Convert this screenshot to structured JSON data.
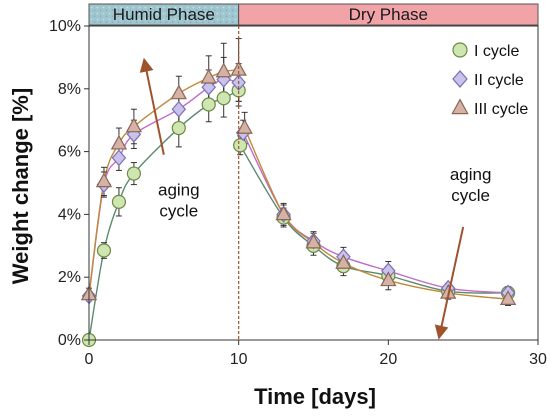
{
  "chart_data": {
    "type": "scatter",
    "xlabel": "Time [days]",
    "ylabel": "Weight change [%]",
    "xlim": [
      0,
      30
    ],
    "ylim": [
      0,
      10
    ],
    "xticks": [
      0,
      10,
      20,
      30
    ],
    "yticks": [
      0,
      2,
      4,
      6,
      8,
      10
    ],
    "ytick_suffix": "%",
    "grid": false,
    "legend_position": "top-right",
    "phases": [
      {
        "label": "Humid Phase",
        "from": 0,
        "to": 10,
        "color": "#9fc6cf"
      },
      {
        "label": "Dry Phase",
        "from": 10,
        "to": 30,
        "color": "#f2a3a8"
      }
    ],
    "phase_boundary": 10,
    "series": [
      {
        "name": "I cycle",
        "marker": "circle",
        "fill": "#cfe6b0",
        "stroke": "#6a8a45",
        "line": "#5b8a6e",
        "points": [
          {
            "x": 0,
            "y": 0.0,
            "err": 0.0
          },
          {
            "x": 1,
            "y": 2.85,
            "err": 0.25
          },
          {
            "x": 2,
            "y": 4.4,
            "err": 0.45
          },
          {
            "x": 3,
            "y": 5.3,
            "err": 0.35
          },
          {
            "x": 6,
            "y": 6.75,
            "err": 0.6
          },
          {
            "x": 8,
            "y": 7.5,
            "err": 0.55
          },
          {
            "x": 9,
            "y": 7.7,
            "err": 0.6
          },
          {
            "x": 10,
            "y": 7.95,
            "err": 0.5
          },
          {
            "x": 10.1,
            "y": 6.2,
            "err": 0.3
          },
          {
            "x": 13,
            "y": 3.9,
            "err": 0.3
          },
          {
            "x": 15,
            "y": 3.0,
            "err": 0.3
          },
          {
            "x": 17,
            "y": 2.35,
            "err": 0.3
          },
          {
            "x": 20,
            "y": 2.05,
            "err": 0.3
          },
          {
            "x": 24,
            "y": 1.55,
            "err": 0.2
          },
          {
            "x": 28,
            "y": 1.5,
            "err": 0.2
          }
        ]
      },
      {
        "name": "II cycle",
        "marker": "diamond",
        "fill": "#c9c2ea",
        "stroke": "#7a70b5",
        "line": "#c06cc8",
        "points": [
          {
            "x": 0,
            "y": 1.4,
            "err": 0.1
          },
          {
            "x": 1,
            "y": 4.95,
            "err": 0.4
          },
          {
            "x": 2,
            "y": 5.8,
            "err": 0.4
          },
          {
            "x": 3,
            "y": 6.55,
            "err": 0.45
          },
          {
            "x": 6,
            "y": 7.35,
            "err": 0.5
          },
          {
            "x": 8,
            "y": 8.05,
            "err": 0.55
          },
          {
            "x": 9,
            "y": 8.3,
            "err": 0.7
          },
          {
            "x": 10,
            "y": 8.2,
            "err": 0.6
          },
          {
            "x": 10.3,
            "y": 6.6,
            "err": 0.4
          },
          {
            "x": 13,
            "y": 4.0,
            "err": 0.35
          },
          {
            "x": 15,
            "y": 3.15,
            "err": 0.3
          },
          {
            "x": 17,
            "y": 2.65,
            "err": 0.3
          },
          {
            "x": 20,
            "y": 2.2,
            "err": 0.3
          },
          {
            "x": 24,
            "y": 1.65,
            "err": 0.15
          },
          {
            "x": 28,
            "y": 1.5,
            "err": 0.2
          }
        ]
      },
      {
        "name": "III cycle",
        "marker": "triangle",
        "fill": "#d4b2a6",
        "stroke": "#8b6656",
        "line": "#c08a3a",
        "points": [
          {
            "x": 0,
            "y": 1.45,
            "err": 0.2
          },
          {
            "x": 1,
            "y": 5.05,
            "err": 0.45
          },
          {
            "x": 2,
            "y": 6.25,
            "err": 0.5
          },
          {
            "x": 3,
            "y": 6.8,
            "err": 0.55
          },
          {
            "x": 6,
            "y": 7.85,
            "err": 0.55
          },
          {
            "x": 8,
            "y": 8.35,
            "err": 0.7
          },
          {
            "x": 9,
            "y": 8.55,
            "err": 0.9
          },
          {
            "x": 10,
            "y": 8.6,
            "err": 1.0
          },
          {
            "x": 10.4,
            "y": 6.75,
            "err": 0.5
          },
          {
            "x": 13,
            "y": 4.0,
            "err": 0.3
          },
          {
            "x": 15,
            "y": 3.1,
            "err": 0.3
          },
          {
            "x": 17,
            "y": 2.45,
            "err": 0.3
          },
          {
            "x": 20,
            "y": 1.9,
            "err": 0.3
          },
          {
            "x": 24,
            "y": 1.5,
            "err": 0.2
          },
          {
            "x": 28,
            "y": 1.3,
            "err": 0.2
          }
        ]
      }
    ],
    "annotations": [
      {
        "lines": [
          "aging",
          "cycle"
        ],
        "at": {
          "x": 6,
          "y": 4.6
        },
        "arrow_from": {
          "x": 5,
          "y": 5.9
        },
        "arrow_to": {
          "x": 3.7,
          "y": 8.9
        },
        "arrow_color": "#a0522d"
      },
      {
        "lines": [
          "aging",
          "cycle"
        ],
        "at": {
          "x": 25.5,
          "y": 5.1
        },
        "arrow_from": {
          "x": 25.0,
          "y": 3.6
        },
        "arrow_to": {
          "x": 23.4,
          "y": 0.1
        },
        "arrow_color": "#a0522d"
      }
    ]
  }
}
